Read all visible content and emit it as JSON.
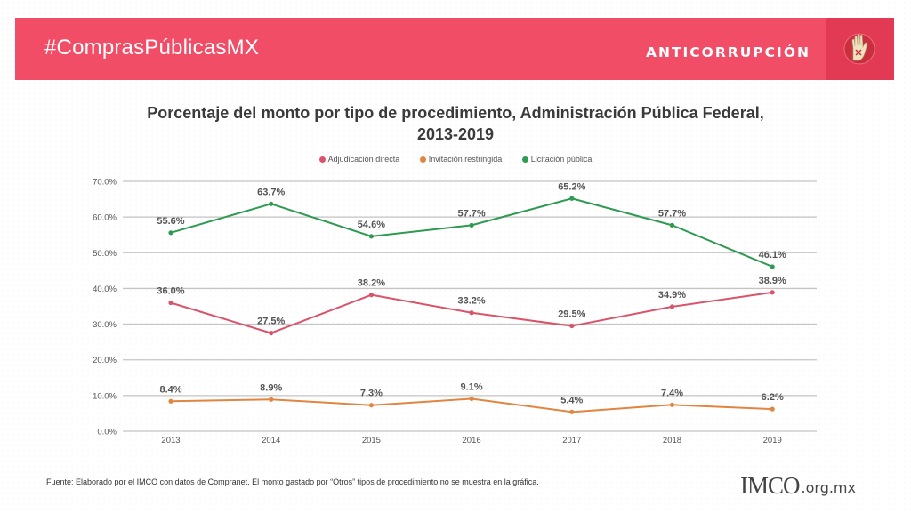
{
  "header": {
    "hashtag": "#ComprasPúblicasMX",
    "section": "ANTICORRUPCIÓN",
    "icon": "raised-hand-icon",
    "banner_color": "#f24d66",
    "icon_box_color": "#e23a54"
  },
  "chart_data": {
    "type": "line",
    "title_line1": "Porcentaje del monto por tipo de procedimiento, Administración Pública Federal,",
    "title_line2": "2013-2019",
    "xlabel": "",
    "ylabel": "",
    "categories": [
      "2013",
      "2014",
      "2015",
      "2016",
      "2017",
      "2018",
      "2019"
    ],
    "y_ticks": [
      "0.0%",
      "10.0%",
      "20.0%",
      "30.0%",
      "40.0%",
      "50.0%",
      "60.0%",
      "70.0%"
    ],
    "ylim": [
      0,
      70
    ],
    "grid": true,
    "legend_position": "top",
    "series": [
      {
        "name": "Adjudicación directa",
        "color": "#d9536a",
        "values": [
          36.0,
          27.5,
          38.2,
          33.2,
          29.5,
          34.9,
          38.9
        ],
        "labels": [
          "36.0%",
          "27.5%",
          "38.2%",
          "33.2%",
          "29.5%",
          "34.9%",
          "38.9%"
        ]
      },
      {
        "name": "Invitación restringida",
        "color": "#e08542",
        "values": [
          8.4,
          8.9,
          7.3,
          9.1,
          5.4,
          7.4,
          6.2
        ],
        "labels": [
          "8.4%",
          "8.9%",
          "7.3%",
          "9.1%",
          "5.4%",
          "7.4%",
          "6.2%"
        ]
      },
      {
        "name": "Licitación pública",
        "color": "#2f9a52",
        "values": [
          55.6,
          63.7,
          54.6,
          57.7,
          65.2,
          57.7,
          46.1
        ],
        "labels": [
          "55.6%",
          "63.7%",
          "54.6%",
          "57.7%",
          "65.2%",
          "57.7%",
          "46.1%"
        ]
      }
    ]
  },
  "footer": {
    "source": "Fuente: Elaborado por el IMCO con datos de Compranet.  El monto gastado por “Otros” tipos de procedimiento no se muestra en la gráfica.",
    "logo_main": "IMCO",
    "logo_domain": ".org.mx"
  }
}
